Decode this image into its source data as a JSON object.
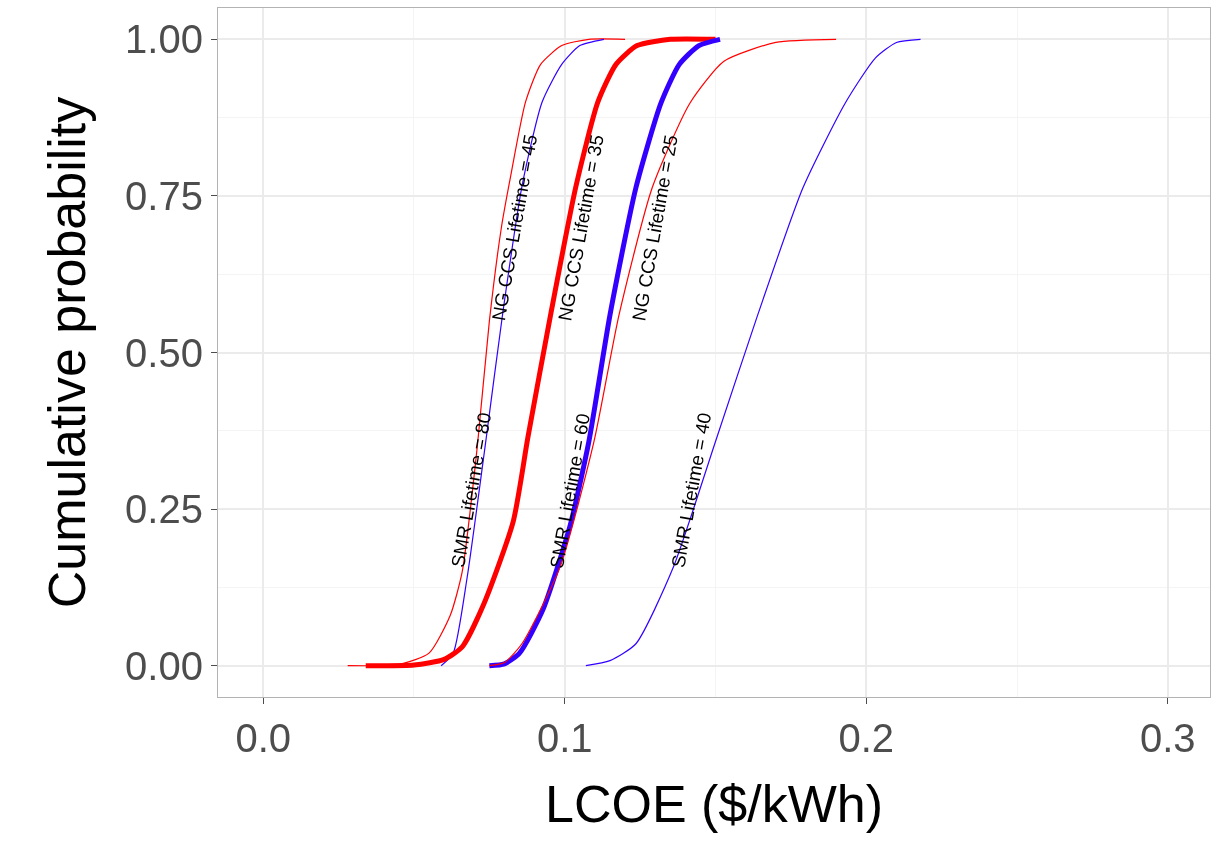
{
  "chart_data": {
    "type": "line",
    "xlabel": "LCOE ($/kWh)",
    "ylabel": "Cumulative probability",
    "xlim": [
      -0.015,
      0.314
    ],
    "ylim": [
      -0.05,
      1.05
    ],
    "xticks": [
      {
        "value": 0,
        "label": "0.0"
      },
      {
        "value": 0.1,
        "label": "0.1"
      },
      {
        "value": 0.2,
        "label": "0.2"
      },
      {
        "value": 0.3,
        "label": "0.3"
      }
    ],
    "yticks": [
      {
        "value": 0,
        "label": "0.00"
      },
      {
        "value": 0.25,
        "label": "0.25"
      },
      {
        "value": 0.5,
        "label": "0.50"
      },
      {
        "value": 0.75,
        "label": "0.75"
      },
      {
        "value": 1,
        "label": "1.00"
      }
    ],
    "grid": true,
    "legend": false,
    "marker": "none",
    "line_style": "solid",
    "series": [
      {
        "name": "NG CCS Lifetime = 45",
        "color": "#ff0000",
        "x": [
          0.028,
          0.045,
          0.055,
          0.062,
          0.066,
          0.071,
          0.075,
          0.079,
          0.082,
          0.087,
          0.092,
          0.099,
          0.108,
          0.12
        ],
        "values": [
          0,
          0.002,
          0.02,
          0.08,
          0.15,
          0.35,
          0.55,
          0.7,
          0.78,
          0.9,
          0.96,
          0.99,
          1,
          1
        ]
      },
      {
        "name": "SMR Lifetime = 80",
        "color": "#3300ff",
        "x": [
          0.059,
          0.063,
          0.0676,
          0.074,
          0.0795,
          0.0858,
          0.0925,
          0.099,
          0.105,
          0.113
        ],
        "values": [
          0,
          0.02,
          0.14,
          0.365,
          0.565,
          0.765,
          0.9,
          0.96,
          0.99,
          1
        ]
      },
      {
        "name": "NG CCS Lifetime = 35",
        "color": "#ff0000",
        "x": [
          0.034,
          0.05,
          0.06,
          0.066,
          0.0733,
          0.0829,
          0.0878,
          0.0955,
          0.1037,
          0.111,
          0.117,
          0.124,
          0.135,
          0.15
        ],
        "values": [
          0,
          0.001,
          0.01,
          0.03,
          0.1,
          0.23,
          0.365,
          0.565,
          0.765,
          0.9,
          0.96,
          0.99,
          1,
          1
        ]
      },
      {
        "name": "SMR Lifetime = 60",
        "color": "#3300ff",
        "x": [
          0.075,
          0.08,
          0.085,
          0.0928,
          0.1018,
          0.108,
          0.115,
          0.1236,
          0.1319,
          0.138,
          0.1445,
          0.1515
        ],
        "values": [
          0,
          0.003,
          0.02,
          0.09,
          0.224,
          0.358,
          0.56,
          0.763,
          0.898,
          0.96,
          0.99,
          1
        ]
      },
      {
        "name": "NG CCS Lifetime = 25",
        "color": "#ff0000",
        "x": [
          0.075,
          0.08,
          0.0858,
          0.0984,
          0.1097,
          0.118,
          0.129,
          0.1415,
          0.1528,
          0.17,
          0.19
        ],
        "values": [
          0,
          0.005,
          0.035,
          0.157,
          0.358,
          0.56,
          0.763,
          0.898,
          0.965,
          0.995,
          1
        ]
      },
      {
        "name": "SMR Lifetime = 40",
        "color": "#3300ff",
        "x": [
          0.107,
          0.115,
          0.1236,
          0.136,
          0.15,
          0.164,
          0.179,
          0.193,
          0.203,
          0.21,
          0.218
        ],
        "values": [
          0,
          0.008,
          0.035,
          0.157,
          0.358,
          0.56,
          0.763,
          0.898,
          0.97,
          0.995,
          1
        ]
      }
    ]
  }
}
